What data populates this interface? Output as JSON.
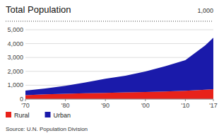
{
  "chart_data": {
    "type": "area",
    "stacked": true,
    "title": "Total Population",
    "subtitle": "1,000",
    "annotations": [
      "Source: U.N. Population Division"
    ],
    "x": [
      1970,
      1975,
      1980,
      1985,
      1990,
      1995,
      2000,
      2005,
      2010,
      2015,
      2017
    ],
    "series": [
      {
        "name": "Rural",
        "color": "#e8221a",
        "values": [
          280,
          340,
          380,
          420,
          450,
          480,
          510,
          550,
          600,
          680,
          720
        ]
      },
      {
        "name": "Urban",
        "color": "#1a1aaa",
        "values": [
          330,
          430,
          580,
          780,
          1020,
          1200,
          1480,
          1820,
          2200,
          3200,
          3700
        ]
      }
    ],
    "xlim": [
      1970,
      2017
    ],
    "xticks": [
      {
        "value": 1970,
        "label": "'70"
      },
      {
        "value": 1980,
        "label": "'80"
      },
      {
        "value": 1990,
        "label": "'90"
      },
      {
        "value": 2000,
        "label": "'00"
      },
      {
        "value": 2010,
        "label": "'10"
      },
      {
        "value": 2017,
        "label": "'17"
      }
    ],
    "ylim": [
      0,
      5000
    ],
    "yticks": [
      0,
      {
        "value": 1000,
        "label": "1,000"
      },
      {
        "value": 2000,
        "label": "2,000"
      },
      {
        "value": 3000,
        "label": "3,000"
      },
      {
        "value": 4000,
        "label": "4,000"
      },
      {
        "value": 5000,
        "label": "5,000"
      }
    ],
    "grid": true,
    "legend": "bottom"
  }
}
